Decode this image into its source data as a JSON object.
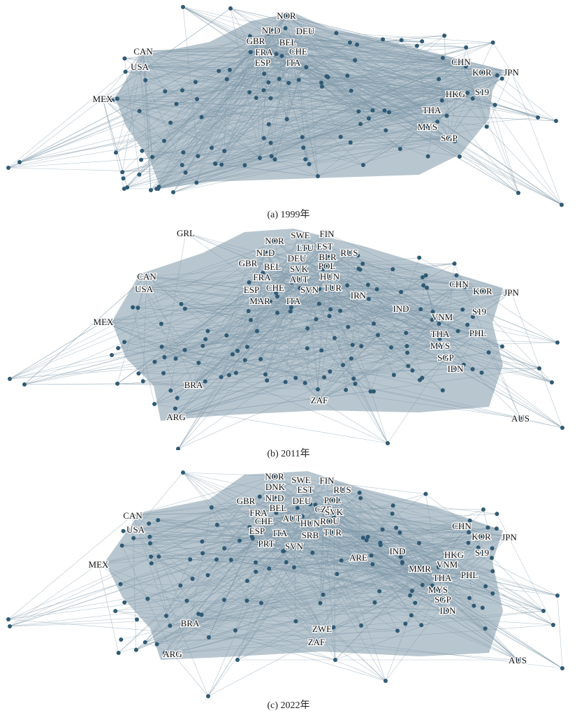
{
  "colors": {
    "edge": "#7d97a8",
    "node": "#2f5a74",
    "label": "#111111"
  },
  "panels": [
    {
      "caption": "(a) 1999年",
      "labels": [
        "NOR",
        "NLD",
        "DEU",
        "GBR",
        "BEL",
        "CAN",
        "FRA",
        "CHE",
        "ESP",
        "ITA",
        "USA",
        "CHN",
        "KOR",
        "JPN",
        "MEX",
        "HKG",
        "S19",
        "THA",
        "MYS",
        "SGP"
      ]
    },
    {
      "caption": "(b) 2011年",
      "labels": [
        "GRL",
        "SWE",
        "FIN",
        "NOR",
        "LTU",
        "EST",
        "NLD",
        "DEU",
        "BLR",
        "RUS",
        "GBR",
        "BEL",
        "SVK",
        "POL",
        "CAN",
        "FRA",
        "AUT",
        "HUN",
        "USA",
        "ESP",
        "CHE",
        "SVN",
        "TUR",
        "MAR",
        "ITA",
        "IRN",
        "CHN",
        "KOR",
        "JPN",
        "IND",
        "S19",
        "VNM",
        "HKG",
        "MEX",
        "PHL",
        "THA",
        "MYS",
        "SGP",
        "IDN",
        "BRA",
        "ZAF",
        "ARG",
        "AUS"
      ]
    },
    {
      "caption": "(c) 2022年",
      "labels": [
        "NOR",
        "SWE",
        "FIN",
        "DNK",
        "EST",
        "RUS",
        "NLD",
        "POL",
        "GBR",
        "DEU",
        "BEL",
        "CZE",
        "SVK",
        "CAN",
        "FRA",
        "AUT",
        "CHE",
        "HUN",
        "ROU",
        "USA",
        "ESP",
        "ITA",
        "SRB",
        "TUR",
        "PRT",
        "SVN",
        "ARE",
        "CHN",
        "KOR",
        "JPN",
        "IND",
        "HKG",
        "S19",
        "MMR",
        "VNM",
        "MEX",
        "PHL",
        "THA",
        "MYS",
        "SGP",
        "IDN",
        "BRA",
        "ZWE",
        "ZAF",
        "ARG",
        "AUS"
      ]
    }
  ]
}
